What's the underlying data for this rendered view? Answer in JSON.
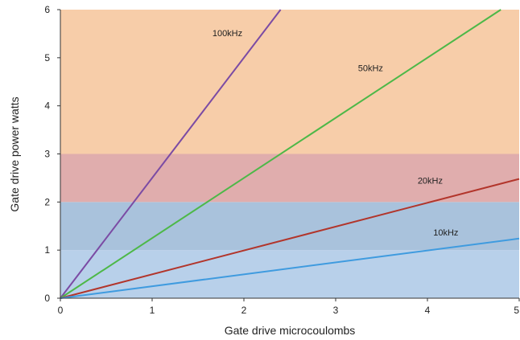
{
  "chart_data": {
    "type": "line",
    "xlabel": "Gate drive microcoulombs",
    "ylabel": "Gate drive power watts",
    "xlim": [
      0,
      5
    ],
    "ylim": [
      0,
      6
    ],
    "x_ticks": [
      "0",
      "1",
      "2",
      "3",
      "4",
      "5"
    ],
    "y_ticks": [
      "0",
      "1",
      "2",
      "3",
      "4",
      "5",
      "6"
    ],
    "bands": [
      {
        "y0": 0,
        "y1": 1,
        "color": "#b8d0ea"
      },
      {
        "y0": 1,
        "y1": 2,
        "color": "#a9c2dc"
      },
      {
        "y0": 2,
        "y1": 3,
        "color": "#e0adad"
      },
      {
        "y0": 3,
        "y1": 6,
        "color": "#f7cda9"
      }
    ],
    "series": [
      {
        "name": "100kHz",
        "color": "#7b4ba4",
        "x": [
          0,
          2.4
        ],
        "y": [
          0,
          6
        ],
        "label_at": [
          1.82,
          5.45
        ]
      },
      {
        "name": "50kHz",
        "color": "#4db848",
        "x": [
          0,
          4.8
        ],
        "y": [
          0,
          6
        ],
        "label_at": [
          3.38,
          4.72
        ]
      },
      {
        "name": "20kHz",
        "color": "#b2352b",
        "x": [
          0,
          5
        ],
        "y": [
          0,
          2.48
        ],
        "label_at": [
          4.03,
          2.38
        ]
      },
      {
        "name": "10kHz",
        "color": "#3f9bdf",
        "x": [
          0,
          5
        ],
        "y": [
          0,
          1.24
        ],
        "label_at": [
          4.2,
          1.3
        ]
      }
    ]
  }
}
